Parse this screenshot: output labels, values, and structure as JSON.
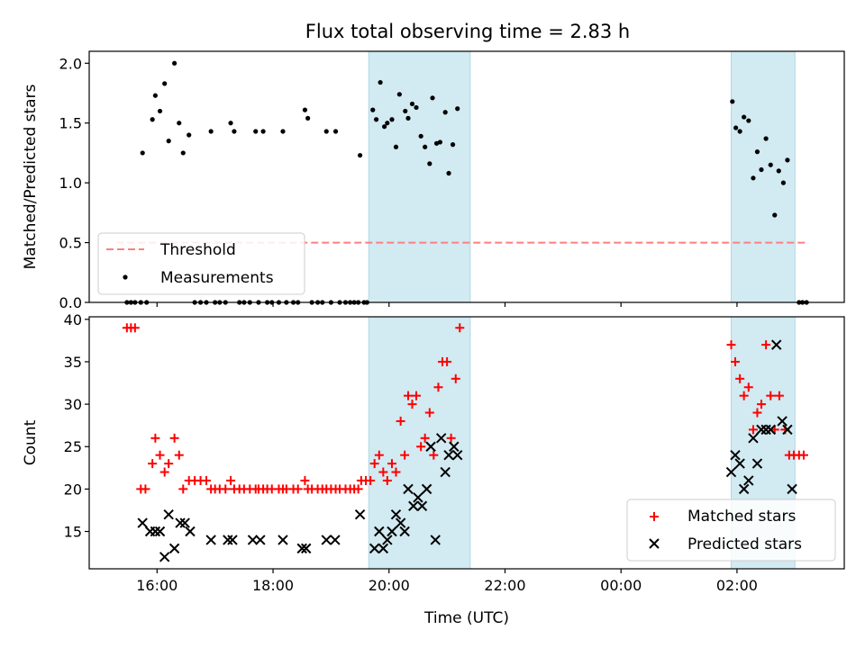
{
  "figure": {
    "title": "Flux total observing time = 2.83 h"
  },
  "chart_data": [
    {
      "type": "scatter",
      "panel": "top",
      "title": "Flux total observing time = 2.83 h",
      "ylabel": "Matched/Predicted stars",
      "xlabel": "",
      "ylim": [
        0,
        2.1
      ],
      "yticks": [
        0.0,
        0.5,
        1.0,
        1.5,
        2.0
      ],
      "ytick_labels": [
        "0.0",
        "0.5",
        "1.0",
        "1.5",
        "2.0"
      ],
      "xlim_hours": [
        14.83,
        27.85
      ],
      "xticks_hours": [
        16,
        18,
        20,
        22,
        24,
        26
      ],
      "xtick_labels": [
        "16:00",
        "18:00",
        "20:00",
        "22:00",
        "00:00",
        "02:00"
      ],
      "shaded_intervals_hours": [
        [
          19.65,
          21.4
        ],
        [
          25.9,
          27.0
        ]
      ],
      "shade_color": "#add8e6",
      "threshold": {
        "name": "Threshold",
        "value": 0.5,
        "x_range_hours": [
          15.3,
          27.2
        ],
        "color": "#ff7f7f",
        "style": "dashed"
      },
      "legend": {
        "placement": "lower-left",
        "entries": [
          "Threshold",
          "Measurements"
        ]
      },
      "series": [
        {
          "name": "Measurements",
          "color": "#000000",
          "marker": "dot",
          "points": [
            [
              15.48,
              0
            ],
            [
              15.55,
              0
            ],
            [
              15.62,
              0
            ],
            [
              15.72,
              0
            ],
            [
              15.75,
              1.25
            ],
            [
              15.82,
              0
            ],
            [
              15.92,
              1.53
            ],
            [
              15.97,
              1.73
            ],
            [
              16.05,
              1.6
            ],
            [
              16.13,
              1.83
            ],
            [
              16.2,
              1.35
            ],
            [
              16.3,
              2.0
            ],
            [
              16.38,
              1.5
            ],
            [
              16.45,
              1.25
            ],
            [
              16.55,
              1.4
            ],
            [
              16.65,
              0
            ],
            [
              16.75,
              0
            ],
            [
              16.85,
              0
            ],
            [
              16.93,
              1.43
            ],
            [
              17.0,
              0
            ],
            [
              17.08,
              0
            ],
            [
              17.18,
              0
            ],
            [
              17.27,
              1.5
            ],
            [
              17.33,
              1.43
            ],
            [
              17.42,
              0
            ],
            [
              17.5,
              0
            ],
            [
              17.6,
              0
            ],
            [
              17.7,
              1.43
            ],
            [
              17.75,
              0
            ],
            [
              17.83,
              1.43
            ],
            [
              17.9,
              0
            ],
            [
              17.98,
              0
            ],
            [
              18.1,
              0
            ],
            [
              18.17,
              1.43
            ],
            [
              18.23,
              0
            ],
            [
              18.35,
              0
            ],
            [
              18.43,
              0
            ],
            [
              18.55,
              1.61
            ],
            [
              18.6,
              1.54
            ],
            [
              18.67,
              0
            ],
            [
              18.77,
              0
            ],
            [
              18.85,
              0
            ],
            [
              18.92,
              1.43
            ],
            [
              19.0,
              0
            ],
            [
              19.08,
              1.43
            ],
            [
              19.15,
              0
            ],
            [
              19.25,
              0
            ],
            [
              19.33,
              0
            ],
            [
              19.4,
              0
            ],
            [
              19.47,
              0
            ],
            [
              19.5,
              1.23
            ],
            [
              19.57,
              0
            ],
            [
              19.62,
              0
            ],
            [
              19.72,
              1.61
            ],
            [
              19.78,
              1.53
            ],
            [
              19.85,
              1.84
            ],
            [
              19.92,
              1.47
            ],
            [
              19.97,
              1.5
            ],
            [
              20.05,
              1.53
            ],
            [
              20.12,
              1.3
            ],
            [
              20.18,
              1.74
            ],
            [
              20.28,
              1.6
            ],
            [
              20.33,
              1.54
            ],
            [
              20.4,
              1.66
            ],
            [
              20.47,
              1.63
            ],
            [
              20.55,
              1.39
            ],
            [
              20.62,
              1.3
            ],
            [
              20.7,
              1.16
            ],
            [
              20.75,
              1.71
            ],
            [
              20.82,
              1.33
            ],
            [
              20.88,
              1.34
            ],
            [
              20.97,
              1.59
            ],
            [
              21.03,
              1.08
            ],
            [
              21.1,
              1.32
            ],
            [
              21.18,
              1.62
            ],
            [
              25.92,
              1.68
            ],
            [
              25.98,
              1.46
            ],
            [
              26.05,
              1.43
            ],
            [
              26.12,
              1.55
            ],
            [
              26.2,
              1.52
            ],
            [
              26.28,
              1.04
            ],
            [
              26.35,
              1.26
            ],
            [
              26.42,
              1.11
            ],
            [
              26.5,
              1.37
            ],
            [
              26.58,
              1.15
            ],
            [
              26.65,
              0.73
            ],
            [
              26.72,
              1.1
            ],
            [
              26.8,
              1.0
            ],
            [
              26.87,
              1.19
            ],
            [
              27.07,
              0
            ],
            [
              27.13,
              0
            ],
            [
              27.2,
              0
            ]
          ]
        }
      ]
    },
    {
      "type": "scatter",
      "panel": "bottom",
      "ylabel": "Count",
      "xlabel": "Time (UTC)",
      "ylim": [
        10.6,
        40.3
      ],
      "yticks": [
        15,
        20,
        25,
        30,
        35,
        40
      ],
      "ytick_labels": [
        "15",
        "20",
        "25",
        "30",
        "35",
        "40"
      ],
      "xlim_hours": [
        14.83,
        27.85
      ],
      "xticks_hours": [
        16,
        18,
        20,
        22,
        24,
        26
      ],
      "xtick_labels": [
        "16:00",
        "18:00",
        "20:00",
        "22:00",
        "00:00",
        "02:00"
      ],
      "shaded_intervals_hours": [
        [
          19.65,
          21.4
        ],
        [
          25.9,
          27.0
        ]
      ],
      "shade_color": "#add8e6",
      "legend": {
        "placement": "lower-right",
        "entries": [
          "Matched stars",
          "Predicted stars"
        ]
      },
      "series": [
        {
          "name": "Matched stars",
          "color": "#ff0000",
          "marker": "plus",
          "points": [
            [
              15.48,
              39
            ],
            [
              15.55,
              39
            ],
            [
              15.62,
              39
            ],
            [
              15.72,
              20
            ],
            [
              15.8,
              20
            ],
            [
              15.92,
              23
            ],
            [
              15.97,
              26
            ],
            [
              16.05,
              24
            ],
            [
              16.13,
              22
            ],
            [
              16.2,
              23
            ],
            [
              16.3,
              26
            ],
            [
              16.38,
              24
            ],
            [
              16.45,
              20
            ],
            [
              16.55,
              21
            ],
            [
              16.65,
              21
            ],
            [
              16.75,
              21
            ],
            [
              16.85,
              21
            ],
            [
              16.93,
              20
            ],
            [
              17.0,
              20
            ],
            [
              17.08,
              20
            ],
            [
              17.18,
              20
            ],
            [
              17.27,
              21
            ],
            [
              17.33,
              20
            ],
            [
              17.42,
              20
            ],
            [
              17.5,
              20
            ],
            [
              17.6,
              20
            ],
            [
              17.7,
              20
            ],
            [
              17.75,
              20
            ],
            [
              17.83,
              20
            ],
            [
              17.9,
              20
            ],
            [
              17.98,
              20
            ],
            [
              18.1,
              20
            ],
            [
              18.17,
              20
            ],
            [
              18.23,
              20
            ],
            [
              18.35,
              20
            ],
            [
              18.43,
              20
            ],
            [
              18.55,
              21
            ],
            [
              18.6,
              20
            ],
            [
              18.67,
              20
            ],
            [
              18.77,
              20
            ],
            [
              18.85,
              20
            ],
            [
              18.92,
              20
            ],
            [
              19.0,
              20
            ],
            [
              19.08,
              20
            ],
            [
              19.15,
              20
            ],
            [
              19.25,
              20
            ],
            [
              19.33,
              20
            ],
            [
              19.4,
              20
            ],
            [
              19.47,
              20
            ],
            [
              19.52,
              21
            ],
            [
              19.6,
              21
            ],
            [
              19.68,
              21
            ],
            [
              19.75,
              23
            ],
            [
              19.83,
              24
            ],
            [
              19.9,
              22
            ],
            [
              19.97,
              21
            ],
            [
              20.05,
              23
            ],
            [
              20.12,
              22
            ],
            [
              20.2,
              28
            ],
            [
              20.27,
              24
            ],
            [
              20.33,
              31
            ],
            [
              20.4,
              30
            ],
            [
              20.47,
              31
            ],
            [
              20.55,
              25
            ],
            [
              20.62,
              26
            ],
            [
              20.7,
              29
            ],
            [
              20.77,
              24
            ],
            [
              20.85,
              32
            ],
            [
              20.92,
              35
            ],
            [
              21.0,
              35
            ],
            [
              21.07,
              26
            ],
            [
              21.15,
              33
            ],
            [
              21.22,
              39
            ],
            [
              25.9,
              37
            ],
            [
              25.97,
              35
            ],
            [
              26.05,
              33
            ],
            [
              26.12,
              31
            ],
            [
              26.2,
              32
            ],
            [
              26.28,
              27
            ],
            [
              26.35,
              29
            ],
            [
              26.42,
              30
            ],
            [
              26.5,
              37
            ],
            [
              26.58,
              31
            ],
            [
              26.65,
              27
            ],
            [
              26.73,
              31
            ],
            [
              26.83,
              27
            ],
            [
              26.9,
              24
            ],
            [
              26.98,
              24
            ],
            [
              27.07,
              24
            ],
            [
              27.15,
              24
            ]
          ]
        },
        {
          "name": "Predicted stars",
          "color": "#000000",
          "marker": "x",
          "points": [
            [
              15.75,
              16
            ],
            [
              15.88,
              15
            ],
            [
              15.97,
              15
            ],
            [
              16.05,
              15
            ],
            [
              16.13,
              12
            ],
            [
              16.2,
              17
            ],
            [
              16.3,
              13
            ],
            [
              16.4,
              16
            ],
            [
              16.48,
              16
            ],
            [
              16.57,
              15
            ],
            [
              16.93,
              14
            ],
            [
              17.22,
              14
            ],
            [
              17.3,
              14
            ],
            [
              17.65,
              14
            ],
            [
              17.78,
              14
            ],
            [
              18.17,
              14
            ],
            [
              18.5,
              13
            ],
            [
              18.57,
              13
            ],
            [
              18.92,
              14
            ],
            [
              19.07,
              14
            ],
            [
              19.5,
              17
            ],
            [
              19.75,
              13
            ],
            [
              19.83,
              15
            ],
            [
              19.9,
              13
            ],
            [
              19.97,
              14
            ],
            [
              20.05,
              15
            ],
            [
              20.12,
              17
            ],
            [
              20.2,
              16
            ],
            [
              20.27,
              15
            ],
            [
              20.33,
              20
            ],
            [
              20.42,
              18
            ],
            [
              20.5,
              19
            ],
            [
              20.57,
              18
            ],
            [
              20.65,
              20
            ],
            [
              20.72,
              25
            ],
            [
              20.8,
              14
            ],
            [
              20.9,
              26
            ],
            [
              20.97,
              22
            ],
            [
              21.03,
              24
            ],
            [
              21.12,
              25
            ],
            [
              21.18,
              24
            ],
            [
              25.9,
              22
            ],
            [
              25.97,
              24
            ],
            [
              26.05,
              23
            ],
            [
              26.12,
              20
            ],
            [
              26.2,
              21
            ],
            [
              26.28,
              26
            ],
            [
              26.35,
              23
            ],
            [
              26.42,
              27
            ],
            [
              26.5,
              27
            ],
            [
              26.58,
              27
            ],
            [
              26.68,
              37
            ],
            [
              26.78,
              28
            ],
            [
              26.87,
              27
            ],
            [
              26.95,
              20
            ]
          ]
        }
      ]
    }
  ]
}
